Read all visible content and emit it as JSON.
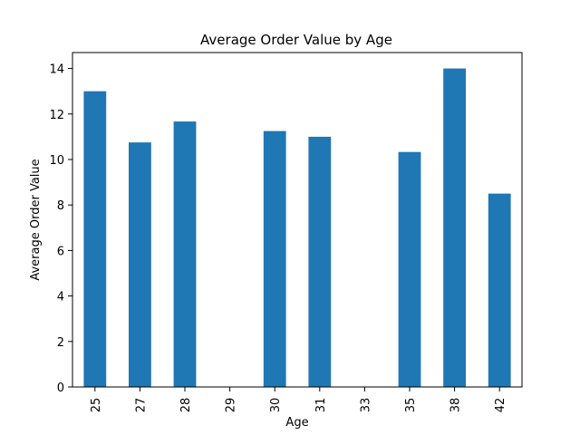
{
  "chart_data": {
    "type": "bar",
    "title": "Average Order Value by Age",
    "xlabel": "Age",
    "ylabel": "Average Order Value",
    "categories": [
      "25",
      "27",
      "28",
      "29",
      "30",
      "31",
      "33",
      "35",
      "38",
      "42"
    ],
    "values": [
      13.0,
      10.75,
      11.67,
      0,
      11.25,
      11.0,
      0,
      10.33,
      14.0,
      8.5
    ],
    "ylim": [
      0,
      14.7
    ],
    "yticks": [
      0,
      2,
      4,
      6,
      8,
      10,
      12,
      14
    ],
    "ytick_labels": [
      "0",
      "2",
      "4",
      "6",
      "8",
      "10",
      "12",
      "14"
    ],
    "grid": false,
    "legend": "none",
    "bar_color": "#1f77b4"
  }
}
